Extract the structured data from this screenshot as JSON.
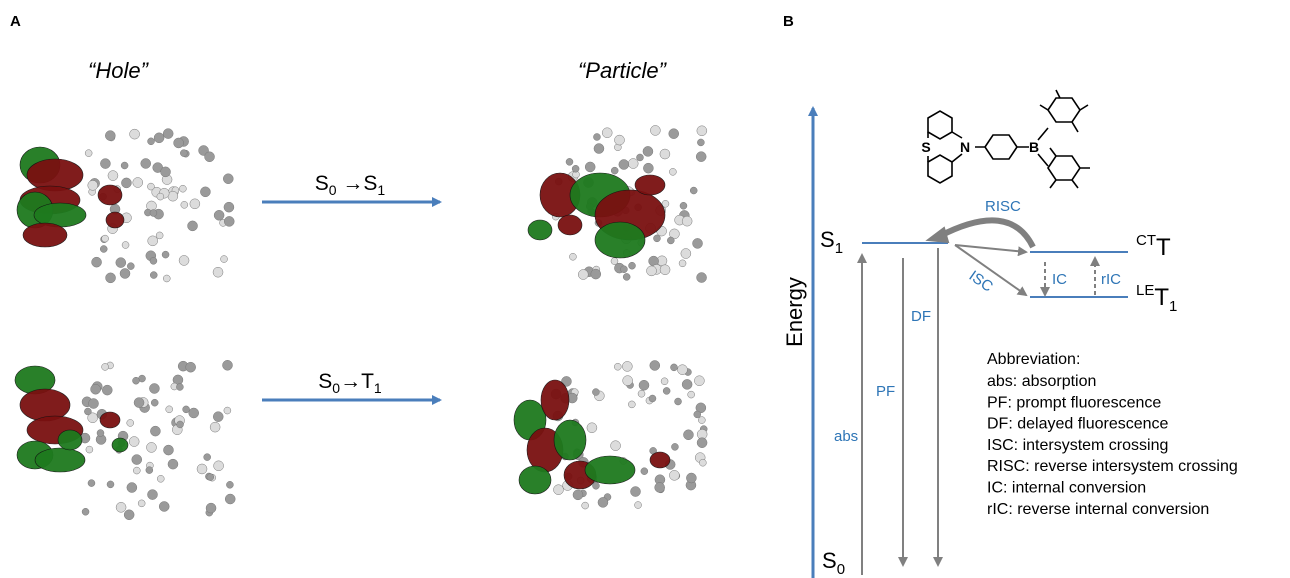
{
  "panel_a": {
    "label": "A",
    "hole": "“Hole”",
    "particle": "“Particle”",
    "transitions": [
      {
        "parts": [
          "S",
          "0",
          " →S",
          "1"
        ]
      },
      {
        "parts": [
          "S",
          "0",
          "→T",
          "1"
        ]
      }
    ]
  },
  "panel_b": {
    "label": "B",
    "axis": "Energy",
    "structure_atoms": [
      "S",
      "N",
      "B"
    ],
    "s1": [
      "S",
      "1"
    ],
    "s0": [
      "S",
      "0"
    ],
    "ct_t": [
      "CT",
      "T"
    ],
    "le_t1": [
      "LE",
      "T",
      "1"
    ],
    "arrows": {
      "risc": "RISC",
      "isc": "ISC",
      "ic": "IC",
      "ric": "rIC",
      "df": "DF",
      "pf": "PF",
      "abs": "abs"
    },
    "abbreviation": {
      "title": "Abbreviation:",
      "items": [
        "abs: absorption",
        "PF: prompt fluorescence",
        "DF: delayed fluorescence",
        "ISC: intersystem crossing",
        "RISC: reverse intersystem crossing",
        "IC: internal conversion",
        "rIC: reverse internal conversion"
      ]
    }
  }
}
